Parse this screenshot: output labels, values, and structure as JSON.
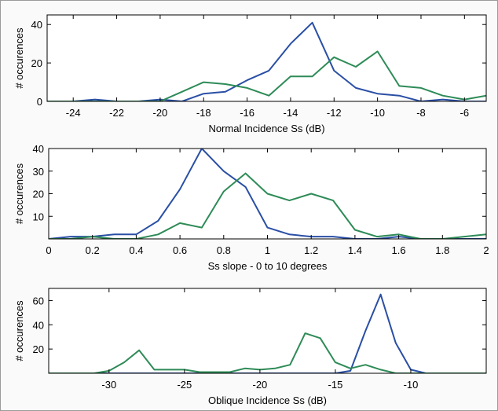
{
  "chart_data": [
    {
      "type": "line",
      "xlabel": "Normal Incidence Ss (dB)",
      "ylabel": "# occurences",
      "xlim": [
        -25.2,
        -5
      ],
      "ylim": [
        0,
        45
      ],
      "xticks": [
        -24,
        -22,
        -20,
        -18,
        -16,
        -14,
        -12,
        -10,
        -8,
        -6
      ],
      "yticks": [
        0,
        20,
        40
      ],
      "grid": false,
      "series": [
        {
          "color": "#2a4fa5",
          "x": [
            -25.2,
            -24,
            -23,
            -22,
            -21,
            -20,
            -19,
            -18,
            -17,
            -16,
            -15,
            -14,
            -13,
            -12,
            -11,
            -10,
            -9,
            -8,
            -7,
            -6,
            -5
          ],
          "y": [
            0,
            0,
            1,
            0,
            0,
            1,
            0,
            4,
            5,
            11,
            16,
            30,
            41,
            16,
            7,
            4,
            3,
            0,
            1,
            0,
            0
          ]
        },
        {
          "color": "#2e8b57",
          "x": [
            -25.2,
            -24,
            -23,
            -22,
            -21,
            -20,
            -19,
            -18,
            -17,
            -16,
            -15,
            -14,
            -13,
            -12,
            -11,
            -10,
            -9,
            -8,
            -7,
            -6,
            -5
          ],
          "y": [
            0,
            0,
            0,
            0,
            0,
            0,
            5,
            10,
            9,
            7,
            3,
            13,
            13,
            23,
            18,
            26,
            8,
            7,
            3,
            1,
            3
          ]
        }
      ]
    },
    {
      "type": "line",
      "xlabel": "Ss slope - 0 to 10 degrees",
      "ylabel": "# occurences",
      "xlim": [
        0,
        2
      ],
      "ylim": [
        0,
        40
      ],
      "xticks": [
        0,
        0.2,
        0.4,
        0.6,
        0.8,
        1,
        1.2,
        1.4,
        1.6,
        1.8,
        2
      ],
      "yticks": [
        10,
        20,
        30,
        40
      ],
      "grid": false,
      "series": [
        {
          "color": "#2a4fa5",
          "x": [
            0,
            0.1,
            0.2,
            0.3,
            0.4,
            0.5,
            0.6,
            0.7,
            0.8,
            0.9,
            1.0,
            1.1,
            1.2,
            1.3,
            1.4,
            1.5,
            1.6,
            1.7,
            1.8,
            1.9,
            2.0
          ],
          "y": [
            0,
            1,
            1,
            2,
            2,
            8,
            22,
            40,
            30,
            23,
            5,
            2,
            1,
            1,
            0,
            0,
            1,
            0,
            0,
            0,
            0
          ]
        },
        {
          "color": "#2e8b57",
          "x": [
            0,
            0.1,
            0.2,
            0.3,
            0.4,
            0.5,
            0.6,
            0.7,
            0.8,
            0.9,
            1.0,
            1.1,
            1.2,
            1.3,
            1.4,
            1.5,
            1.6,
            1.7,
            1.8,
            1.9,
            2.0
          ],
          "y": [
            0,
            0,
            1,
            0,
            0,
            2,
            7,
            5,
            21,
            29,
            20,
            17,
            20,
            17,
            4,
            1,
            2,
            0,
            0,
            1,
            2
          ]
        }
      ]
    },
    {
      "type": "line",
      "xlabel": "Oblique Incidence Ss (dB)",
      "ylabel": "# occurences",
      "xlim": [
        -34,
        -5
      ],
      "ylim": [
        0,
        70
      ],
      "xticks": [
        -30,
        -25,
        -20,
        -15,
        -10
      ],
      "yticks": [
        20,
        40,
        60
      ],
      "grid": false,
      "series": [
        {
          "color": "#2a4fa5",
          "x": [
            -34,
            -30,
            -29,
            -28,
            -27,
            -26,
            -25,
            -24,
            -23,
            -22,
            -21,
            -20,
            -19,
            -18,
            -17,
            -16,
            -15,
            -14,
            -13,
            -12,
            -11,
            -10,
            -9,
            -8,
            -7,
            -6,
            -5
          ],
          "y": [
            0,
            0,
            0,
            0,
            0,
            0,
            0,
            0,
            0,
            0,
            0,
            0,
            0,
            0,
            0,
            0,
            0,
            2,
            35,
            65,
            25,
            3,
            0,
            0,
            0,
            0,
            0
          ]
        },
        {
          "color": "#2e8b57",
          "x": [
            -34,
            -31,
            -30,
            -29,
            -28,
            -27,
            -26,
            -25,
            -24,
            -23,
            -22,
            -21,
            -20,
            -19,
            -18,
            -17,
            -16,
            -15,
            -14,
            -13,
            -12,
            -11,
            -10,
            -9,
            -8,
            -7,
            -6,
            -5
          ],
          "y": [
            0,
            0,
            2,
            9,
            19,
            3,
            3,
            3,
            1,
            1,
            1,
            4,
            3,
            4,
            7,
            33,
            29,
            9,
            4,
            7,
            3,
            0,
            0,
            0,
            0,
            0,
            0,
            0
          ]
        }
      ]
    }
  ]
}
